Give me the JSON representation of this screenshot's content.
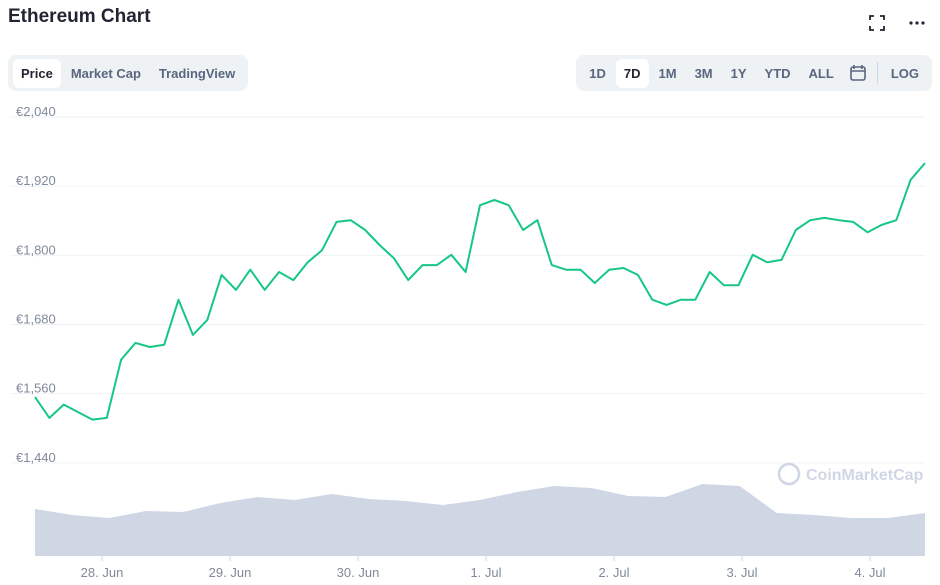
{
  "header": {
    "title": "Ethereum Chart"
  },
  "tabs": [
    "Price",
    "Market Cap",
    "TradingView"
  ],
  "ranges": [
    "1D",
    "7D",
    "1M",
    "3M",
    "1Y",
    "YTD",
    "ALL"
  ],
  "scale_button": "LOG",
  "watermark": "CoinMarketCap",
  "chart_data": {
    "type": "line",
    "x_labels": [
      "28. Jun",
      "29. Jun",
      "30. Jun",
      "1. Jul",
      "2. Jul",
      "3. Jul",
      "4. Jul"
    ],
    "series": [
      {
        "name": "Price",
        "color": "#16c784",
        "values": [
          1554,
          1518,
          1541,
          1528,
          1515,
          1518,
          1619,
          1648,
          1641,
          1645,
          1723,
          1662,
          1688,
          1766,
          1740,
          1775,
          1740,
          1771,
          1757,
          1788,
          1809,
          1858,
          1861,
          1844,
          1818,
          1795,
          1757,
          1783,
          1783,
          1801,
          1771,
          1887,
          1896,
          1887,
          1844,
          1861,
          1783,
          1775,
          1775,
          1752,
          1775,
          1778,
          1766,
          1723,
          1714,
          1723,
          1723,
          1771,
          1748,
          1748,
          1801,
          1788,
          1792,
          1844,
          1861,
          1865,
          1861,
          1858,
          1840,
          1853,
          1861,
          1931,
          1960
        ]
      }
    ],
    "volume": [
      47,
      41,
      38,
      45,
      44,
      53,
      59,
      56,
      62,
      57,
      55,
      51,
      56,
      64,
      70,
      68,
      60,
      59,
      72,
      70,
      43,
      41,
      38,
      38,
      43
    ],
    "volume_color": "#cfd6e4",
    "ylim": [
      1320,
      2040
    ],
    "yticks": [
      {
        "value": 2040,
        "label": "€2,040"
      },
      {
        "value": 1920,
        "label": "€1,920"
      },
      {
        "value": 1800,
        "label": "€1,800"
      },
      {
        "value": 1680,
        "label": "€1,680"
      },
      {
        "value": 1560,
        "label": "€1,560"
      },
      {
        "value": 1440,
        "label": "€1,440"
      }
    ],
    "grid": true
  }
}
